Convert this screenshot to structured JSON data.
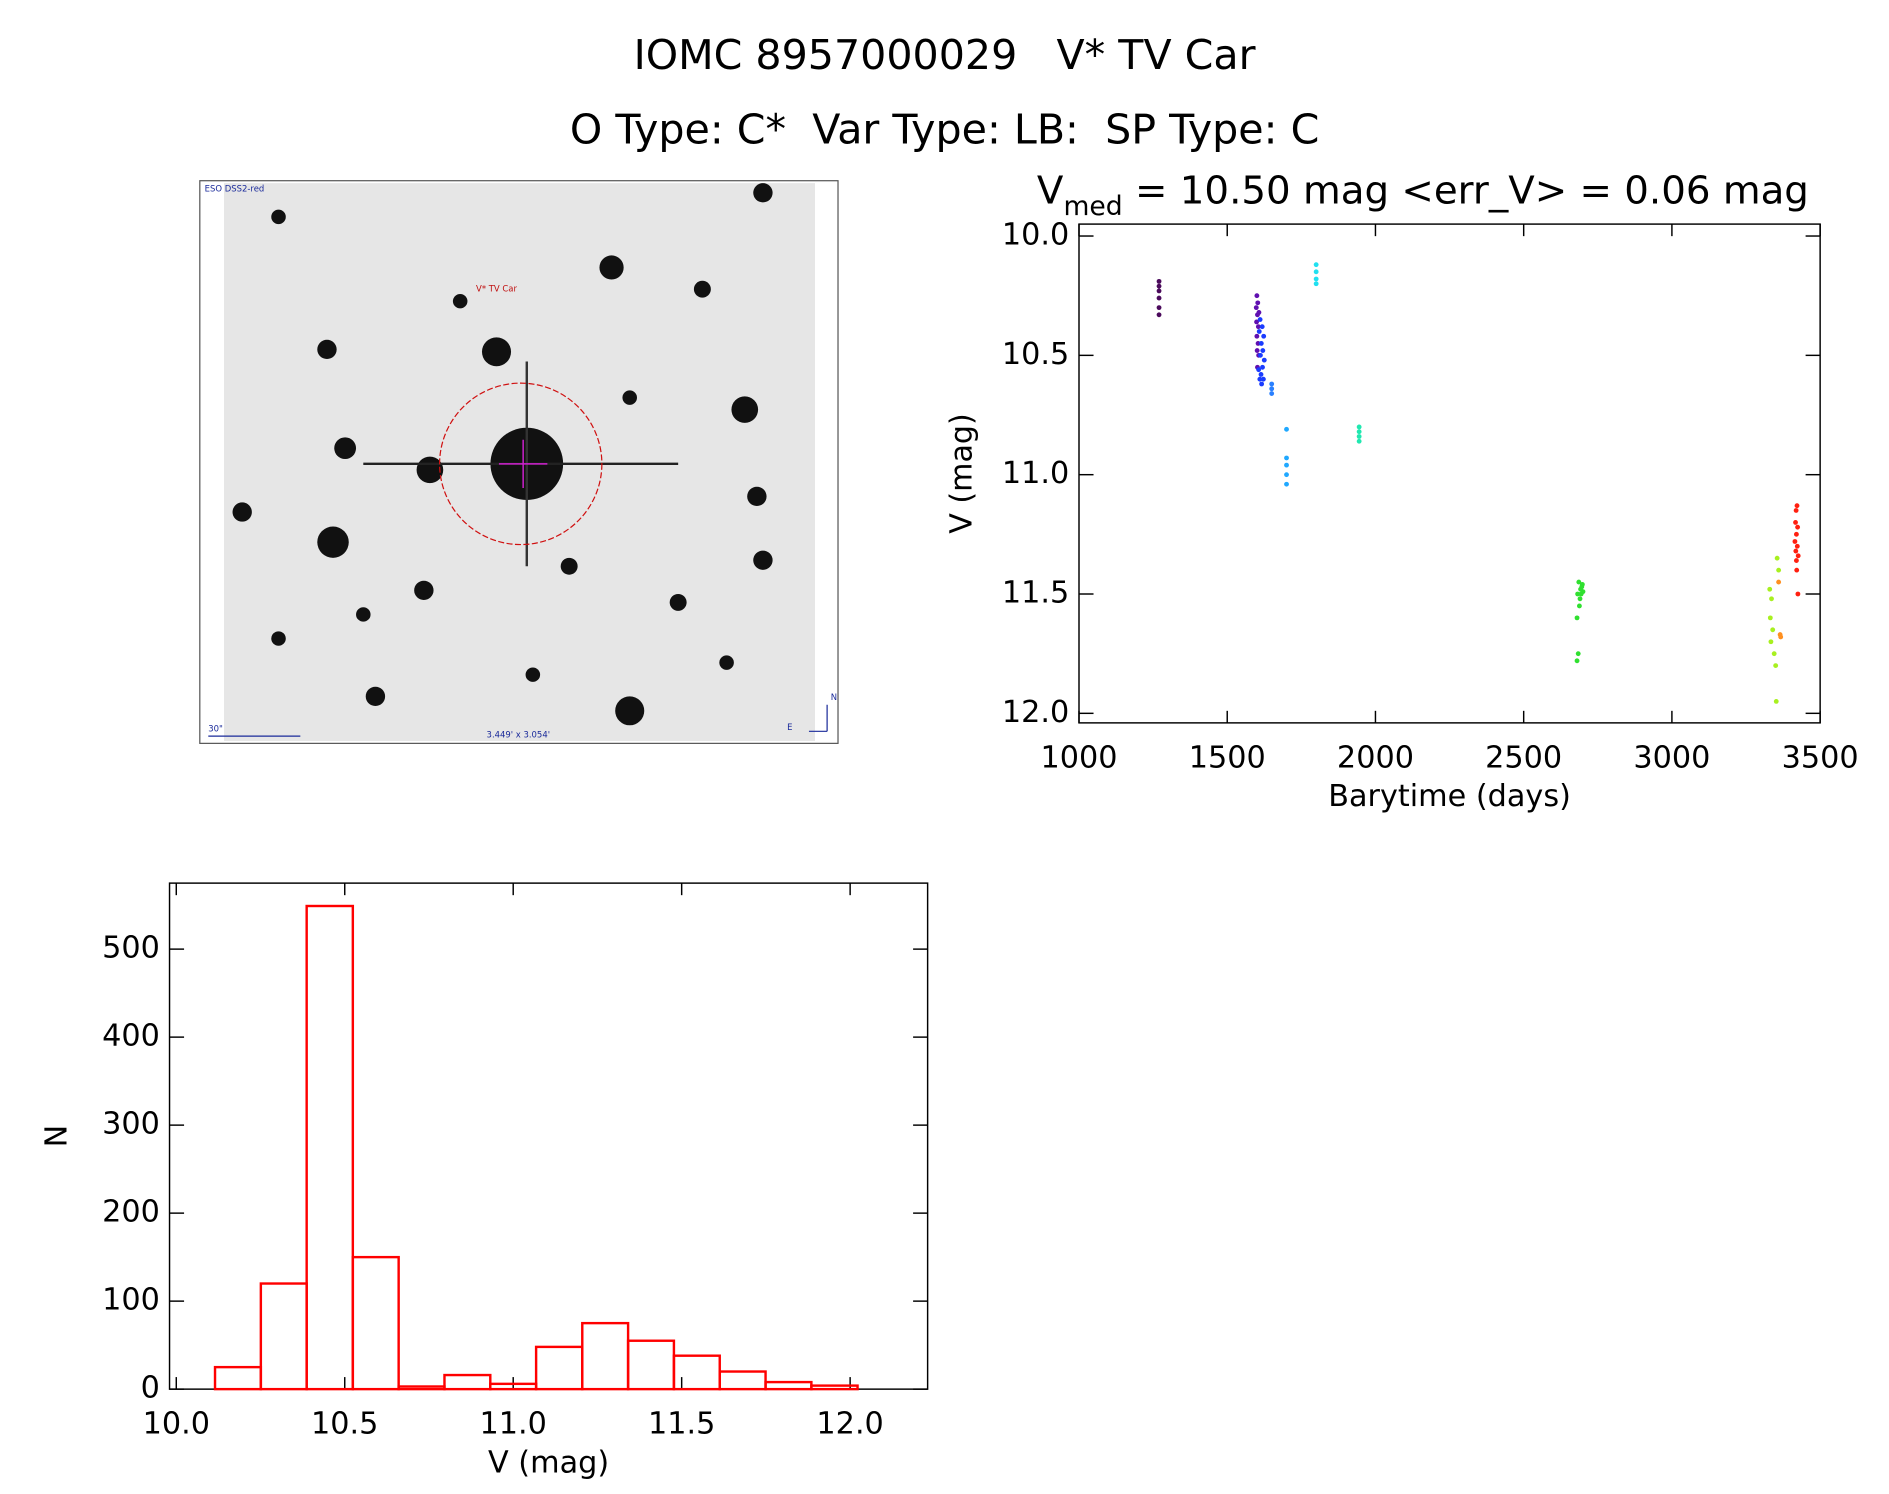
{
  "header": {
    "title": "IOMC 8957000029   V* TV Car",
    "subtitle": "O Type: C*  Var Type: LB:  SP Type: C"
  },
  "image": {
    "survey": "ESO DSS2-red",
    "target": "V* TV Car",
    "scale": "30\"",
    "fov": "3.449' x 3.054'",
    "north": "N",
    "east": "E"
  },
  "chart_data": [
    {
      "type": "scatter",
      "title": {
        "symbol": "V",
        "subscript": "med",
        "text": " = 10.50 mag <err_V> = 0.06 mag"
      },
      "x_label": "Barytime (days)",
      "y_label": "V (mag)",
      "xlim": [
        1000,
        3500
      ],
      "xticks": [
        1000,
        1500,
        2000,
        2500,
        3000,
        3500
      ],
      "ylim": [
        12.04,
        9.95
      ],
      "yticks": [
        {
          "value": 10.0,
          "label": "10.0"
        },
        10.5,
        {
          "value": 11.0,
          "label": "11.0"
        },
        11.5,
        {
          "value": 12.0,
          "label": "12.0"
        }
      ],
      "series": [
        {
          "color": "#4b0a5c",
          "x": [
            1270,
            1270,
            1270,
            1270,
            1270,
            1270
          ],
          "values": [
            10.19,
            10.21,
            10.23,
            10.26,
            10.3,
            10.33
          ]
        },
        {
          "color": "#6010b0",
          "x": [
            1598,
            1599,
            1600,
            1600,
            1601,
            1602,
            1602,
            1603,
            1604,
            1605,
            1606,
            1607
          ],
          "values": [
            10.3,
            10.36,
            10.25,
            10.42,
            10.48,
            10.33,
            10.55,
            10.28,
            10.45,
            10.38,
            10.5,
            10.32
          ]
        },
        {
          "color": "#1a3cff",
          "x": [
            1606,
            1608,
            1610,
            1611,
            1612,
            1614,
            1615,
            1616,
            1618,
            1619,
            1620,
            1622,
            1623,
            1625
          ],
          "values": [
            10.56,
            10.4,
            10.6,
            10.35,
            10.5,
            10.58,
            10.45,
            10.62,
            10.38,
            10.55,
            10.48,
            10.6,
            10.42,
            10.52
          ]
        },
        {
          "color": "#2a80ff",
          "x": [
            1650,
            1650,
            1650
          ],
          "values": [
            10.62,
            10.64,
            10.66
          ]
        },
        {
          "color": "#20a8ff",
          "x": [
            1700,
            1700,
            1700,
            1700,
            1700
          ],
          "values": [
            10.81,
            10.93,
            10.96,
            11.0,
            11.04
          ]
        },
        {
          "color": "#20e0f0",
          "x": [
            1800,
            1800,
            1800,
            1800
          ],
          "values": [
            10.12,
            10.15,
            10.18,
            10.2
          ]
        },
        {
          "color": "#20e8b0",
          "x": [
            1945,
            1945,
            1945,
            1945
          ],
          "values": [
            10.8,
            10.82,
            10.84,
            10.86
          ]
        },
        {
          "color": "#30e030",
          "x": [
            2680,
            2680,
            2682,
            2684,
            2686,
            2688,
            2690,
            2692,
            2694,
            2696,
            2698,
            2700
          ],
          "values": [
            11.6,
            11.78,
            11.5,
            11.75,
            11.45,
            11.55,
            11.52,
            11.48,
            11.5,
            11.47,
            11.46,
            11.49
          ]
        },
        {
          "color": "#a8f020",
          "x": [
            3330,
            3332,
            3334,
            3336,
            3340,
            3345,
            3350,
            3352,
            3355,
            3360
          ],
          "values": [
            11.48,
            11.6,
            11.7,
            11.52,
            11.65,
            11.75,
            11.8,
            11.95,
            11.35,
            11.4
          ]
        },
        {
          "color": "#ff9020",
          "x": [
            3360,
            3365,
            3367
          ],
          "values": [
            11.45,
            11.67,
            11.68
          ]
        },
        {
          "color": "#ff2010",
          "x": [
            3415,
            3417,
            3418,
            3419,
            3420,
            3420,
            3421,
            3422,
            3423,
            3424,
            3425,
            3426
          ],
          "values": [
            11.28,
            11.2,
            11.32,
            11.15,
            11.25,
            11.36,
            11.4,
            11.13,
            11.3,
            11.22,
            11.5,
            11.34
          ]
        }
      ]
    },
    {
      "type": "histogram",
      "color": "#ff0000",
      "x_label": "V (mag)",
      "y_label": "N",
      "xlim": [
        9.98,
        12.23
      ],
      "xticks": [
        {
          "value": 10.0,
          "label": "10.0"
        },
        10.5,
        {
          "value": 11.0,
          "label": "11.0"
        },
        11.5,
        {
          "value": 12.0,
          "label": "12.0"
        }
      ],
      "ylim": [
        0,
        575
      ],
      "yticks": [
        0,
        100,
        200,
        300,
        400,
        500
      ],
      "bins": [
        10.115,
        10.251,
        10.387,
        10.524,
        10.66,
        10.796,
        10.932,
        11.068,
        11.205,
        11.341,
        11.477,
        11.613,
        11.749,
        11.885,
        12.022
      ],
      "values": [
        25,
        120,
        549,
        150,
        3,
        16,
        6,
        48,
        75,
        55,
        38,
        20,
        8,
        4
      ]
    }
  ]
}
